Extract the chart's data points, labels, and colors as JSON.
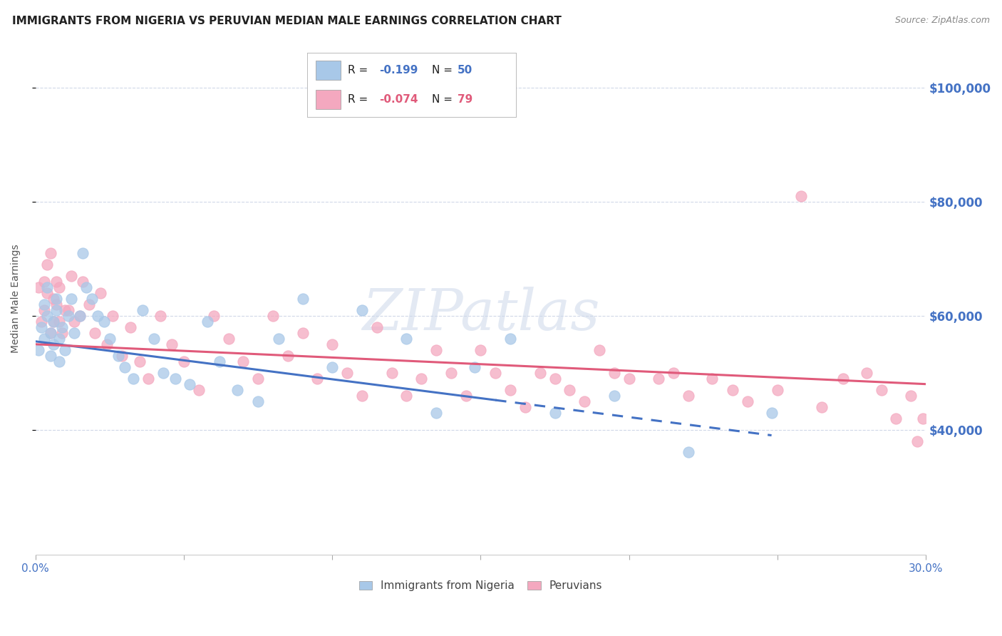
{
  "title": "IMMIGRANTS FROM NIGERIA VS PERUVIAN MEDIAN MALE EARNINGS CORRELATION CHART",
  "source": "Source: ZipAtlas.com",
  "ylabel": "Median Male Earnings",
  "y_tick_labels": [
    "$100,000",
    "$80,000",
    "$60,000",
    "$40,000"
  ],
  "y_tick_values": [
    100000,
    80000,
    60000,
    40000
  ],
  "xlim": [
    0.0,
    0.3
  ],
  "ylim": [
    18000,
    108000
  ],
  "legend_labels_bottom": [
    "Immigrants from Nigeria",
    "Peruvians"
  ],
  "watermark": "ZIPatlas",
  "blue_color": "#a8c8e8",
  "pink_color": "#f4a8bf",
  "trend_blue_color": "#4472c4",
  "trend_pink_color": "#e05a7a",
  "axis_label_color": "#4472c4",
  "grid_color": "#d0d8e8",
  "nigeria_trend_solid_end": 0.155,
  "background_color": "#ffffff",
  "title_fontsize": 11,
  "title_color": "#222222",
  "source_fontsize": 9,
  "source_color": "#888888",
  "nigeria_x": [
    0.001,
    0.002,
    0.003,
    0.003,
    0.004,
    0.004,
    0.005,
    0.005,
    0.006,
    0.006,
    0.007,
    0.007,
    0.008,
    0.008,
    0.009,
    0.01,
    0.011,
    0.012,
    0.013,
    0.015,
    0.016,
    0.017,
    0.019,
    0.021,
    0.023,
    0.025,
    0.028,
    0.03,
    0.033,
    0.036,
    0.04,
    0.043,
    0.047,
    0.052,
    0.058,
    0.062,
    0.068,
    0.075,
    0.082,
    0.09,
    0.1,
    0.11,
    0.125,
    0.135,
    0.148,
    0.16,
    0.175,
    0.195,
    0.22,
    0.248
  ],
  "nigeria_y": [
    54000,
    58000,
    62000,
    56000,
    60000,
    65000,
    57000,
    53000,
    59000,
    55000,
    61000,
    63000,
    56000,
    52000,
    58000,
    54000,
    60000,
    63000,
    57000,
    60000,
    71000,
    65000,
    63000,
    60000,
    59000,
    56000,
    53000,
    51000,
    49000,
    61000,
    56000,
    50000,
    49000,
    48000,
    59000,
    52000,
    47000,
    45000,
    56000,
    63000,
    51000,
    61000,
    56000,
    43000,
    51000,
    56000,
    43000,
    46000,
    36000,
    43000
  ],
  "peru_x": [
    0.001,
    0.002,
    0.003,
    0.003,
    0.004,
    0.004,
    0.005,
    0.005,
    0.006,
    0.006,
    0.007,
    0.007,
    0.008,
    0.008,
    0.009,
    0.01,
    0.011,
    0.012,
    0.013,
    0.015,
    0.016,
    0.018,
    0.02,
    0.022,
    0.024,
    0.026,
    0.029,
    0.032,
    0.035,
    0.038,
    0.042,
    0.046,
    0.05,
    0.055,
    0.06,
    0.065,
    0.07,
    0.075,
    0.08,
    0.085,
    0.09,
    0.095,
    0.1,
    0.105,
    0.11,
    0.115,
    0.12,
    0.125,
    0.13,
    0.135,
    0.14,
    0.145,
    0.15,
    0.155,
    0.16,
    0.165,
    0.17,
    0.175,
    0.18,
    0.185,
    0.19,
    0.195,
    0.2,
    0.21,
    0.215,
    0.22,
    0.228,
    0.235,
    0.24,
    0.25,
    0.258,
    0.265,
    0.272,
    0.28,
    0.285,
    0.29,
    0.295,
    0.297,
    0.299
  ],
  "peru_y": [
    65000,
    59000,
    66000,
    61000,
    69000,
    64000,
    57000,
    71000,
    59000,
    63000,
    62000,
    66000,
    59000,
    65000,
    57000,
    61000,
    61000,
    67000,
    59000,
    60000,
    66000,
    62000,
    57000,
    64000,
    55000,
    60000,
    53000,
    58000,
    52000,
    49000,
    60000,
    55000,
    52000,
    47000,
    60000,
    56000,
    52000,
    49000,
    60000,
    53000,
    57000,
    49000,
    55000,
    50000,
    46000,
    58000,
    50000,
    46000,
    49000,
    54000,
    50000,
    46000,
    54000,
    50000,
    47000,
    44000,
    50000,
    49000,
    47000,
    45000,
    54000,
    50000,
    49000,
    49000,
    50000,
    46000,
    49000,
    47000,
    45000,
    47000,
    81000,
    44000,
    49000,
    50000,
    47000,
    42000,
    46000,
    38000,
    42000
  ],
  "nigeria_trend_x": [
    0.0,
    0.248
  ],
  "nigeria_trend_y": [
    55500,
    39000
  ],
  "peru_trend_x": [
    0.0,
    0.3
  ],
  "peru_trend_y": [
    55000,
    48000
  ]
}
